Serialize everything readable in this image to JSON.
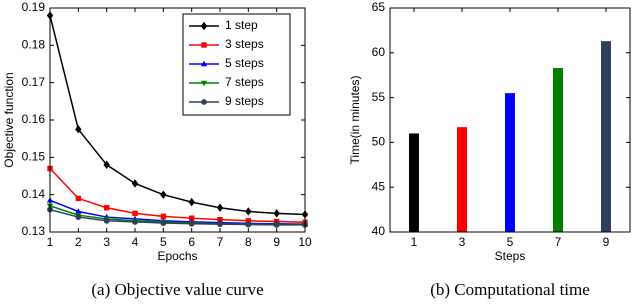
{
  "chart_data": [
    {
      "type": "line",
      "caption": "(a)  Objective value curve",
      "xlabel": "Epochs",
      "ylabel": "Objective function",
      "x": [
        1,
        2,
        3,
        4,
        5,
        6,
        7,
        8,
        9,
        10
      ],
      "xlim": [
        1,
        10
      ],
      "xticks": [
        1,
        2,
        3,
        4,
        5,
        6,
        7,
        8,
        9,
        10
      ],
      "ylim": [
        0.13,
        0.19
      ],
      "yticks": [
        0.13,
        0.14,
        0.15,
        0.16,
        0.17,
        0.18,
        0.19
      ],
      "legend": "upper right",
      "series": [
        {
          "name": "1 step",
          "color": "#000000",
          "marker": "diamond",
          "values": [
            0.188,
            0.1575,
            0.148,
            0.143,
            0.14,
            0.138,
            0.1365,
            0.1355,
            0.135,
            0.1347
          ]
        },
        {
          "name": "3 steps",
          "color": "#ff0000",
          "marker": "square",
          "values": [
            0.147,
            0.139,
            0.1365,
            0.135,
            0.1342,
            0.1337,
            0.1333,
            0.133,
            0.1328,
            0.1326
          ]
        },
        {
          "name": "5 steps",
          "color": "#0000ff",
          "marker": "triangle-up",
          "values": [
            0.1385,
            0.1355,
            0.134,
            0.1335,
            0.133,
            0.1327,
            0.1325,
            0.1323,
            0.1322,
            0.1321
          ]
        },
        {
          "name": "7 steps",
          "color": "#008000",
          "marker": "triangle-down",
          "values": [
            0.137,
            0.1345,
            0.1335,
            0.133,
            0.1327,
            0.1324,
            0.1322,
            0.1321,
            0.132,
            0.132
          ]
        },
        {
          "name": "9 steps",
          "color": "#2f3f60",
          "marker": "circle",
          "values": [
            0.136,
            0.134,
            0.133,
            0.1327,
            0.1324,
            0.1322,
            0.1321,
            0.132,
            0.1319,
            0.1319
          ]
        }
      ]
    },
    {
      "type": "bar",
      "caption": "(b)  Computational time",
      "xlabel": "Steps",
      "ylabel": "Time(in minutes)",
      "categories": [
        "1",
        "3",
        "5",
        "7",
        "9"
      ],
      "values": [
        51,
        51.7,
        55.5,
        58.3,
        61.3
      ],
      "colors": [
        "#000000",
        "#ff0000",
        "#0000ff",
        "#008000",
        "#2f3f60"
      ],
      "ylim": [
        40,
        65
      ],
      "yticks": [
        40,
        45,
        50,
        55,
        60,
        65
      ]
    }
  ]
}
